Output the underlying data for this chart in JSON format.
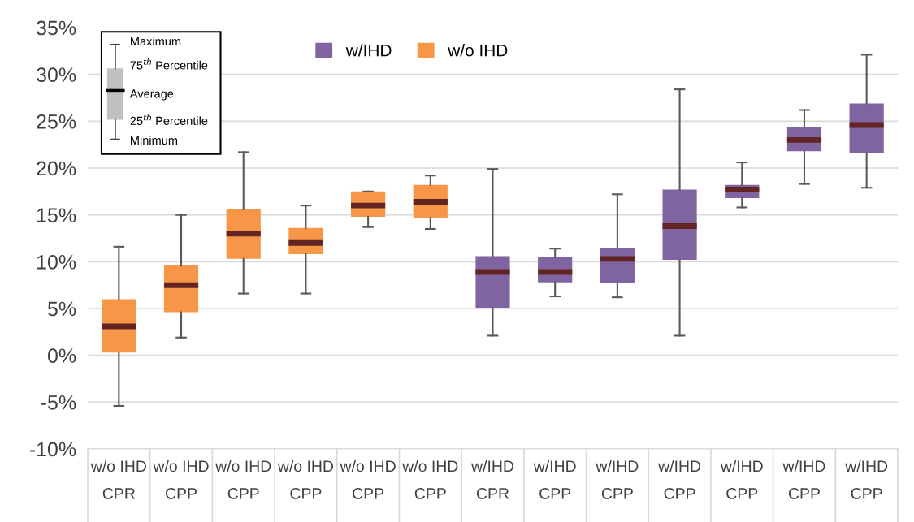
{
  "chart_data": {
    "type": "box",
    "categories": [
      "w/o IHD\nCPR",
      "w/o IHD\nCPP",
      "w/o IHD\nCPP",
      "w/o IHD\nCPP",
      "w/o IHD\nCPP",
      "w/o IHD\nCPP",
      "w/IHD\nCPR",
      "w/IHD\nCPP",
      "w/IHD\nCPP",
      "w/IHD\nCPP",
      "w/IHD\nCPP",
      "w/IHD\nCPP",
      "w/IHD\nCPP"
    ],
    "series": [
      {
        "name": "w/IHD",
        "color": "#8064a2",
        "boxes": [
          null,
          null,
          null,
          null,
          null,
          null,
          {
            "low": 2.1,
            "q1": 5.0,
            "median": 8.9,
            "q3": 10.6,
            "high": 19.9
          },
          {
            "low": 6.3,
            "q1": 7.8,
            "median": 8.9,
            "q3": 10.5,
            "high": 11.4
          },
          {
            "low": 6.2,
            "q1": 7.7,
            "median": 10.3,
            "q3": 11.5,
            "high": 17.2
          },
          {
            "low": 2.1,
            "q1": 10.2,
            "median": 13.8,
            "q3": 17.7,
            "high": 28.4
          },
          {
            "low": 15.8,
            "q1": 16.8,
            "median": 17.7,
            "q3": 18.2,
            "high": 20.6
          },
          {
            "low": 18.3,
            "q1": 21.8,
            "median": 23.0,
            "q3": 24.4,
            "high": 26.2
          },
          {
            "low": 17.9,
            "q1": 21.6,
            "median": 24.6,
            "q3": 26.9,
            "high": 32.1
          }
        ]
      },
      {
        "name": "w/o IHD",
        "color": "#f79646",
        "boxes": [
          {
            "low": -5.4,
            "q1": 0.3,
            "median": 3.1,
            "q3": 6.0,
            "high": 11.6
          },
          {
            "low": 1.9,
            "q1": 4.6,
            "median": 7.5,
            "q3": 9.6,
            "high": 15.0
          },
          {
            "low": 6.6,
            "q1": 10.3,
            "median": 13.0,
            "q3": 15.6,
            "high": 21.7
          },
          {
            "low": 6.6,
            "q1": 10.8,
            "median": 12.0,
            "q3": 13.6,
            "high": 16.0
          },
          {
            "low": 13.7,
            "q1": 14.8,
            "median": 16.0,
            "q3": 17.5,
            "high": 17.5
          },
          {
            "low": 13.5,
            "q1": 14.7,
            "median": 16.4,
            "q3": 18.2,
            "high": 19.2
          },
          null,
          null,
          null,
          null,
          null,
          null,
          null
        ]
      }
    ],
    "ylim": [
      -10,
      35
    ],
    "yticks": [
      {
        "value": -10,
        "label": "-10%"
      },
      {
        "value": -5,
        "label": "-5%"
      },
      {
        "value": 0,
        "label": "0%"
      },
      {
        "value": 5,
        "label": "5%"
      },
      {
        "value": 10,
        "label": "10%"
      },
      {
        "value": 15,
        "label": "15%"
      },
      {
        "value": 20,
        "label": "20%"
      },
      {
        "value": 25,
        "label": "25%"
      },
      {
        "value": 30,
        "label": "30%"
      },
      {
        "value": 35,
        "label": "35%"
      }
    ],
    "grid": "y",
    "legend": "top",
    "annotations": [
      "Maximum",
      "75$^{th}$ Percentile",
      "Average",
      "25$^{th}$ Percentile",
      "Minimum"
    ]
  }
}
